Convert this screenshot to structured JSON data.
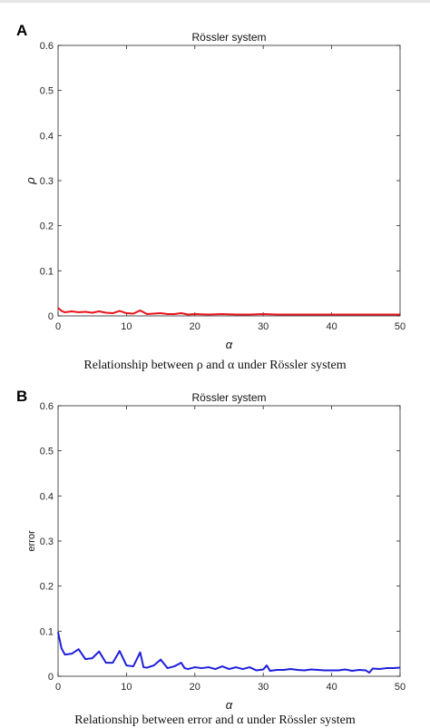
{
  "panels": [
    {
      "letter": "A",
      "caption": "Relationship between ρ and α under Rössler system"
    },
    {
      "letter": "B",
      "caption": "Relationship between error and α under Rössler system"
    }
  ],
  "chart_data": [
    {
      "type": "line",
      "title": "Rössler system",
      "xlabel": "α",
      "ylabel": "ρ",
      "xlim": [
        0,
        50
      ],
      "ylim": [
        0,
        0.6
      ],
      "xticks": [
        0,
        10,
        20,
        30,
        40,
        50
      ],
      "yticks": [
        0,
        0.1,
        0.2,
        0.3,
        0.4,
        0.5,
        0.6
      ],
      "grid": false,
      "color": "#e8141c",
      "series": [
        {
          "x": [
            0,
            0.5,
            1,
            1.5,
            2,
            3,
            4,
            5,
            6,
            7,
            8,
            9,
            10,
            11,
            12,
            13,
            14,
            15,
            16,
            17,
            18,
            19,
            20,
            22,
            24,
            26,
            28,
            30,
            32,
            34,
            36,
            38,
            40,
            42,
            44,
            46,
            48,
            50
          ],
          "y": [
            0.018,
            0.011,
            0.008,
            0.009,
            0.01,
            0.008,
            0.009,
            0.007,
            0.01,
            0.007,
            0.006,
            0.011,
            0.006,
            0.005,
            0.012,
            0.004,
            0.005,
            0.006,
            0.004,
            0.004,
            0.006,
            0.003,
            0.004,
            0.003,
            0.004,
            0.003,
            0.003,
            0.004,
            0.003,
            0.003,
            0.003,
            0.003,
            0.003,
            0.003,
            0.003,
            0.003,
            0.003,
            0.003
          ]
        }
      ]
    },
    {
      "type": "line",
      "title": "Rössler system",
      "xlabel": "α",
      "ylabel": "error",
      "xlim": [
        0,
        50
      ],
      "ylim": [
        0,
        0.6
      ],
      "xticks": [
        0,
        10,
        20,
        30,
        40,
        50
      ],
      "yticks": [
        0,
        0.1,
        0.2,
        0.3,
        0.4,
        0.5,
        0.6
      ],
      "grid": false,
      "color": "#1e1edc",
      "series": [
        {
          "x": [
            0,
            0.5,
            1,
            2,
            3,
            4,
            5,
            6,
            7,
            8,
            9,
            10,
            11,
            12,
            12.5,
            13,
            14,
            15,
            16,
            17,
            18,
            18.5,
            19,
            20,
            21,
            22,
            23,
            24,
            25,
            26,
            27,
            28,
            29,
            30,
            30.5,
            31,
            32,
            33,
            34,
            35,
            36,
            37,
            38,
            39,
            40,
            41,
            42,
            43,
            44,
            45,
            45.5,
            46,
            47,
            48,
            49,
            50
          ],
          "y": [
            0.098,
            0.062,
            0.048,
            0.05,
            0.06,
            0.038,
            0.04,
            0.055,
            0.03,
            0.03,
            0.056,
            0.024,
            0.022,
            0.053,
            0.02,
            0.019,
            0.024,
            0.037,
            0.018,
            0.022,
            0.03,
            0.018,
            0.016,
            0.02,
            0.018,
            0.02,
            0.016,
            0.022,
            0.016,
            0.02,
            0.016,
            0.02,
            0.013,
            0.015,
            0.024,
            0.012,
            0.014,
            0.014,
            0.016,
            0.014,
            0.013,
            0.015,
            0.014,
            0.013,
            0.013,
            0.013,
            0.015,
            0.012,
            0.014,
            0.013,
            0.008,
            0.017,
            0.016,
            0.018,
            0.018,
            0.019
          ]
        }
      ]
    }
  ]
}
